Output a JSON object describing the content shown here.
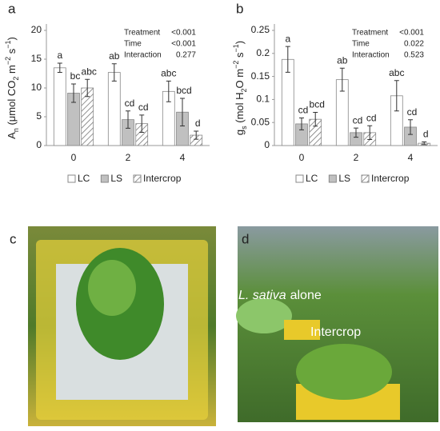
{
  "chart_data": [
    {
      "type": "bar",
      "panel": "a",
      "ylabel_parts": [
        "A",
        "n",
        " (μmol CO",
        "2",
        " m",
        "−2",
        " s",
        "−1",
        ")"
      ],
      "categories": [
        "0",
        "2",
        "4"
      ],
      "series": [
        {
          "name": "LC",
          "color": "#ffffff",
          "values": [
            13.5,
            12.7,
            9.4
          ],
          "errors": [
            0.8,
            1.5,
            1.8
          ],
          "letters": [
            "a",
            "ab",
            "abc"
          ]
        },
        {
          "name": "LS",
          "color": "#c0c0c0",
          "values": [
            9.1,
            4.5,
            5.8
          ],
          "errors": [
            1.6,
            1.5,
            2.4
          ],
          "letters": [
            "bc",
            "cd",
            "bcd"
          ]
        },
        {
          "name": "Intercrop",
          "color": "#ffffff",
          "hatch": true,
          "values": [
            10.0,
            3.8,
            1.8
          ],
          "errors": [
            1.5,
            1.5,
            0.7
          ],
          "letters": [
            "abc",
            "cd",
            "d"
          ]
        }
      ],
      "ylim": [
        0,
        20
      ],
      "yticks": [
        0,
        5,
        10,
        15,
        20
      ],
      "stats": [
        [
          "Treatment",
          "<0.001"
        ],
        [
          "Time",
          "<0.001"
        ],
        [
          "Interaction",
          "0.277"
        ]
      ]
    },
    {
      "type": "bar",
      "panel": "b",
      "ylabel_parts": [
        "g",
        "s",
        " (mol H",
        "2",
        "O m",
        "−2",
        " s",
        "−1",
        ")"
      ],
      "categories": [
        "0",
        "2",
        "4"
      ],
      "series": [
        {
          "name": "LC",
          "color": "#ffffff",
          "values": [
            0.187,
            0.143,
            0.108
          ],
          "errors": [
            0.028,
            0.025,
            0.033
          ],
          "letters": [
            "a",
            "ab",
            "abc"
          ]
        },
        {
          "name": "LS",
          "color": "#c0c0c0",
          "values": [
            0.047,
            0.028,
            0.04
          ],
          "errors": [
            0.013,
            0.01,
            0.016
          ],
          "letters": [
            "cd",
            "cd",
            "cd"
          ]
        },
        {
          "name": "Intercrop",
          "color": "#ffffff",
          "hatch": true,
          "values": [
            0.057,
            0.028,
            0.005
          ],
          "errors": [
            0.015,
            0.015,
            0.003
          ],
          "letters": [
            "bcd",
            "cd",
            "d"
          ]
        }
      ],
      "ylim": [
        0,
        0.25
      ],
      "yticks": [
        0,
        0.05,
        0.1,
        0.15,
        0.2,
        0.25
      ],
      "stats": [
        [
          "Treatment",
          "<0.001"
        ],
        [
          "Time",
          "0.022"
        ],
        [
          "Interaction",
          "0.523"
        ]
      ]
    }
  ],
  "photos": [
    {
      "panel": "c"
    },
    {
      "panel": "d",
      "caption_italic": "L. sativa",
      "caption_plain": "alone",
      "caption2": "Intercrop"
    }
  ]
}
